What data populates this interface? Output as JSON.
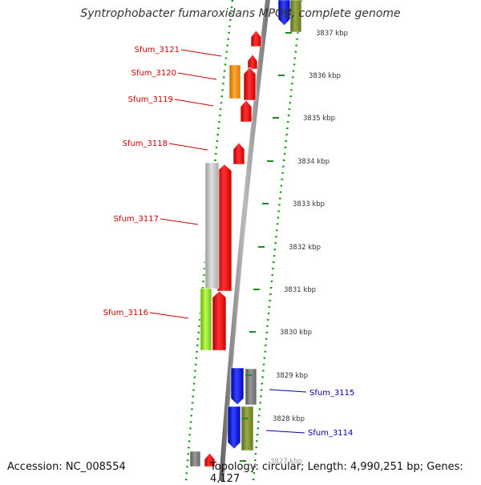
{
  "title": "Syntrophobacter fumaroxidans MPOB, complete genome",
  "accession": "Accession: NC_008554",
  "topology": "Topology: circular; Length: 4,990,251 bp; Genes: 4,127",
  "colors": {
    "red": "#ff0000",
    "orange": "#ff9900",
    "gray": "#888888",
    "light_gray": "#c8c8c8",
    "lime": "#99ee22",
    "olive": "#778833",
    "blue": "#0000ee",
    "backbone": "#888888",
    "dots": "#118811",
    "label_red": "#cc0000",
    "label_blue": "#0000aa"
  },
  "ticks": [
    {
      "label": "3837 kbp"
    },
    {
      "label": "3836 kbp"
    },
    {
      "label": "3835 kbp"
    },
    {
      "label": "3834 kbp"
    },
    {
      "label": "3833 kbp"
    },
    {
      "label": "3832 kbp"
    },
    {
      "label": "3831 kbp"
    },
    {
      "label": "3830 kbp"
    },
    {
      "label": "3829 kbp"
    },
    {
      "label": "3828 kbp"
    },
    {
      "label": "3827 kbp"
    }
  ],
  "gene_labels": [
    {
      "text": "Sfum_3121",
      "color": "red"
    },
    {
      "text": "Sfum_3120",
      "color": "red"
    },
    {
      "text": "Sfum_3119",
      "color": "red"
    },
    {
      "text": "Sfum_3118",
      "color": "red"
    },
    {
      "text": "Sfum_3117",
      "color": "red"
    },
    {
      "text": "Sfum_3116",
      "color": "red"
    },
    {
      "text": "Sfum_3115",
      "color": "blue"
    },
    {
      "text": "Sfum_3114",
      "color": "blue"
    }
  ]
}
